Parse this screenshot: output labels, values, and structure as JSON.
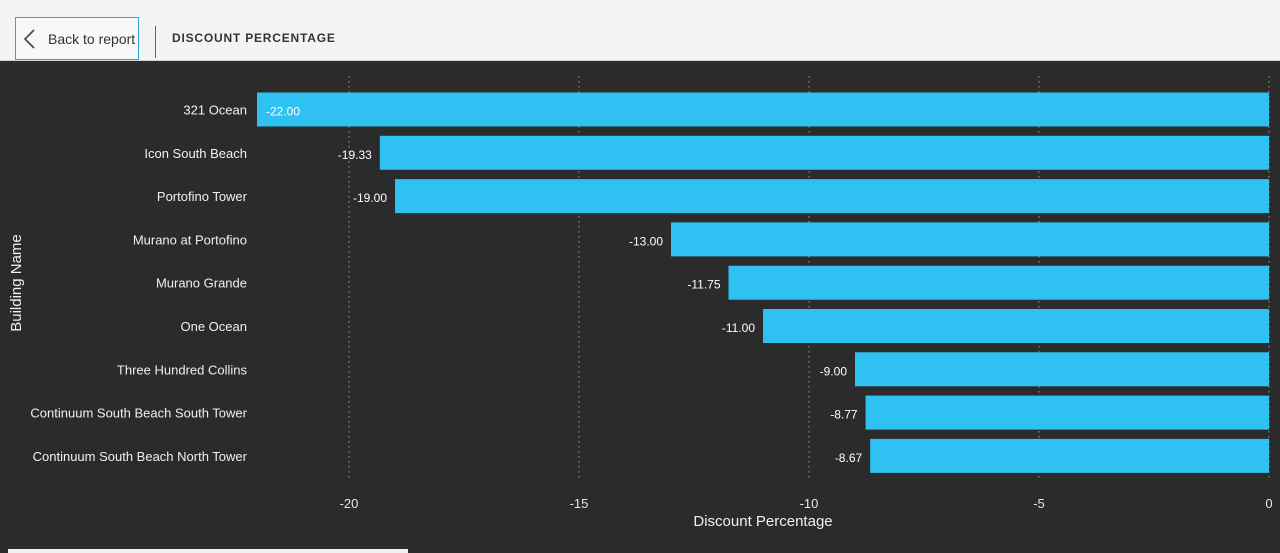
{
  "header": {
    "back_label": "Back to report",
    "page_title": "DISCOUNT PERCENTAGE"
  },
  "colors": {
    "bar": "#2fc1f1",
    "background": "#2b2b2b",
    "header_bg": "#f3f4f4",
    "accent_border": "#2ea6d6"
  },
  "icons": {
    "back": "chevron-left-icon"
  },
  "chart_data": {
    "type": "bar",
    "orientation": "horizontal",
    "categories": [
      "321 Ocean",
      "Icon South Beach",
      "Portofino Tower",
      "Murano at Portofino",
      "Murano Grande",
      "One Ocean",
      "Three Hundred Collins",
      "Continuum South Beach South Tower",
      "Continuum South Beach North Tower"
    ],
    "values": [
      -22.0,
      -19.33,
      -19.0,
      -13.0,
      -11.75,
      -11.0,
      -9.0,
      -8.77,
      -8.67
    ],
    "value_labels": [
      "-22.00",
      "-19.33",
      "-19.00",
      "-13.00",
      "-11.75",
      "-11.00",
      "-9.00",
      "-8.77",
      "-8.67"
    ],
    "xlabel": "Discount Percentage",
    "ylabel": "Building Name",
    "xlim": [
      -22,
      0
    ],
    "xticks": [
      -20,
      -15,
      -10,
      -5,
      0
    ],
    "xtick_labels": [
      "-20",
      "-15",
      "-10",
      "-5",
      "0"
    ],
    "grid": true
  }
}
